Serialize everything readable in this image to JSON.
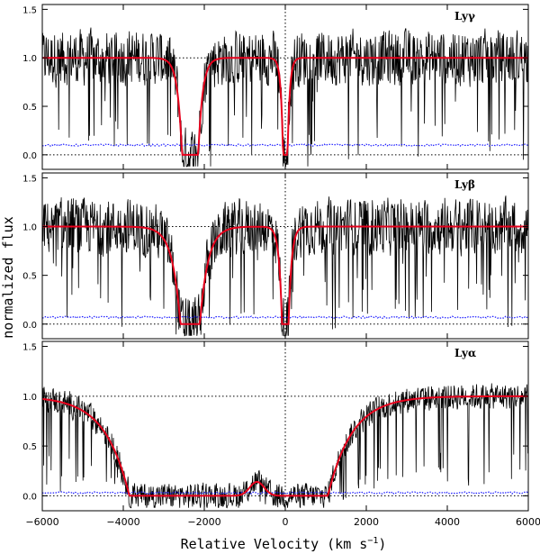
{
  "chart_data": {
    "type": "line",
    "xlabel": "Relative Velocity (km s",
    "xlabel_exp": "−1",
    "xlabel_close": ")",
    "ylabel": "normalized flux",
    "xlim": [
      -6000,
      6000
    ],
    "xticks": [
      -6000,
      -4000,
      -2000,
      0,
      2000,
      4000,
      6000
    ],
    "xtick_labels": [
      "−6000",
      "−4000",
      "−2000",
      "0",
      "2000",
      "4000",
      "6000"
    ],
    "ylim": [
      -0.15,
      1.55
    ],
    "yticks": [
      0.0,
      0.5,
      1.0,
      1.5
    ],
    "ytick_labels": [
      "0.0",
      "0.5",
      "1.0",
      "1.5"
    ],
    "reference_lines": {
      "y_continuum": 1.0,
      "y_zero": 0.0,
      "x_center": 0
    },
    "colors": {
      "data": "#000000",
      "model": "#e8001c",
      "error": "#1a1aff"
    },
    "panels": [
      {
        "label": "Lyγ",
        "model_absorptions": [
          {
            "center": -2350,
            "half_width": 200,
            "edge_width": 110
          },
          {
            "center": 0,
            "half_width": 55,
            "edge_width": 55
          }
        ],
        "error_level": 0.1
      },
      {
        "label": "Lyβ",
        "model_absorptions": [
          {
            "center": -2350,
            "half_width": 240,
            "edge_width": 200
          },
          {
            "center": 0,
            "half_width": 80,
            "edge_width": 75
          }
        ],
        "error_level": 0.07
      },
      {
        "label": "Lyα",
        "model_absorptions": [
          {
            "center": -1400,
            "half_width": 2450,
            "edge_width": 600
          }
        ],
        "model_bump": {
          "center": -700,
          "height": 0.14
        },
        "error_level": 0.03
      }
    ]
  }
}
